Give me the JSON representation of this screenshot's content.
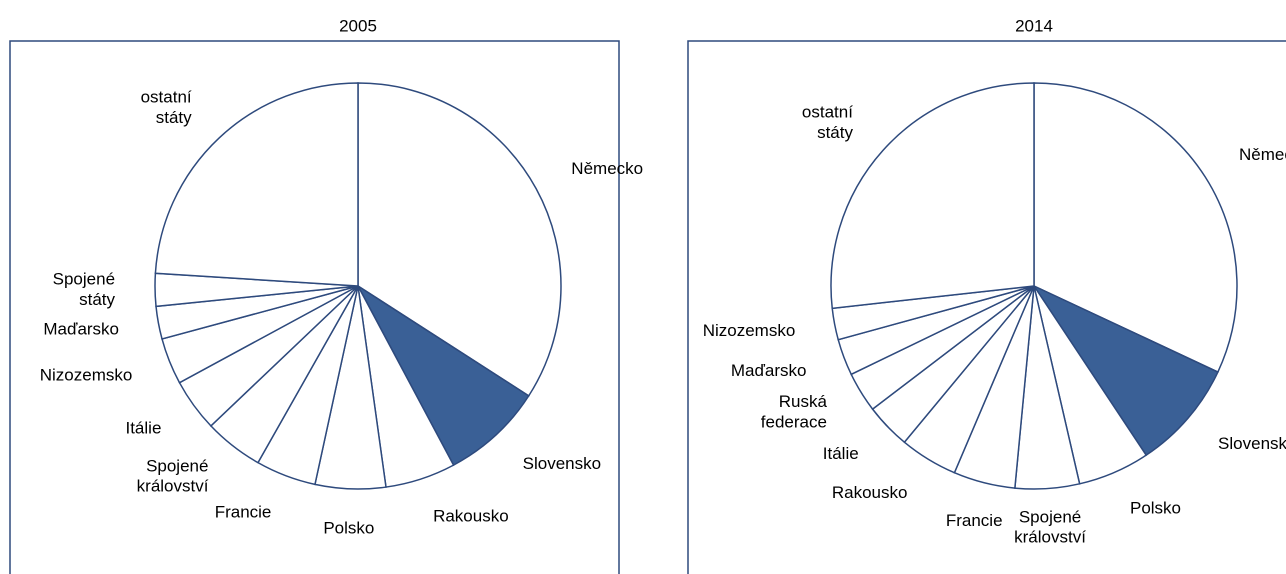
{
  "chart_data": [
    {
      "type": "pie",
      "title": "2005",
      "categories": [
        "Německo",
        "Slovensko",
        "Rakousko",
        "Polsko",
        "Francie",
        "Spojené království",
        "Itálie",
        "Nizozemsko",
        "Maďarsko",
        "Spojené státy",
        "ostatní státy"
      ],
      "values": [
        34.1,
        8.1,
        5.6,
        5.6,
        4.8,
        4.7,
        4.2,
        3.7,
        2.6,
        2.6,
        24.0
      ],
      "colors": [
        "#ffffff",
        "#3a6096",
        "#ffffff",
        "#ffffff",
        "#ffffff",
        "#ffffff",
        "#ffffff",
        "#ffffff",
        "#ffffff",
        "#ffffff",
        "#ffffff"
      ]
    },
    {
      "type": "pie",
      "title": "2014",
      "categories": [
        "Německo",
        "Slovensko",
        "Polsko",
        "Spojené království",
        "Francie",
        "Rakousko",
        "Itálie",
        "Ruská federace",
        "Maďarsko",
        "Nizozemsko",
        "ostatní státy"
      ],
      "values": [
        31.9,
        8.7,
        5.7,
        5.1,
        4.9,
        4.6,
        3.6,
        3.2,
        2.9,
        2.5,
        26.7
      ],
      "colors": [
        "#ffffff",
        "#3a6096",
        "#ffffff",
        "#ffffff",
        "#ffffff",
        "#ffffff",
        "#ffffff",
        "#ffffff",
        "#ffffff",
        "#ffffff",
        "#ffffff"
      ]
    }
  ]
}
